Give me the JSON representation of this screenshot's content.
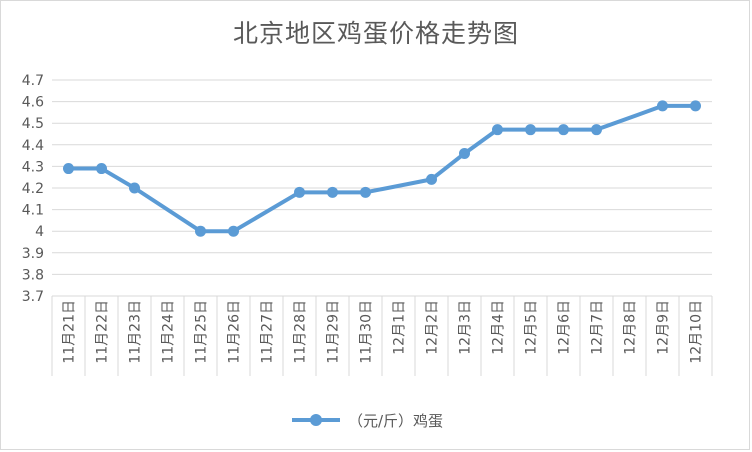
{
  "chart_data": {
    "type": "line",
    "title": "北京地区鸡蛋价格走势图",
    "categories": [
      "11月21日",
      "11月22日",
      "11月23日",
      "11月24日",
      "11月25日",
      "11月26日",
      "11月27日",
      "11月28日",
      "11月29日",
      "11月30日",
      "12月1日",
      "12月2日",
      "12月3日",
      "12月4日",
      "12月5日",
      "12月6日",
      "12月7日",
      "12月8日",
      "12月9日",
      "12月10日"
    ],
    "yticks": [
      "3.7",
      "3.8",
      "3.9",
      "4",
      "4.1",
      "4.2",
      "4.3",
      "4.4",
      "4.5",
      "4.6",
      "4.7"
    ],
    "ylim": [
      3.7,
      4.7
    ],
    "grid": true,
    "legend_position": "bottom",
    "series": [
      {
        "name": "（元/斤）鸡蛋",
        "color": "#5b9bd5",
        "values": [
          4.29,
          4.29,
          4.2,
          null,
          4.0,
          4.0,
          null,
          4.18,
          4.18,
          4.18,
          null,
          4.24,
          4.36,
          4.47,
          4.47,
          4.47,
          4.47,
          null,
          4.58,
          4.58
        ]
      }
    ]
  }
}
